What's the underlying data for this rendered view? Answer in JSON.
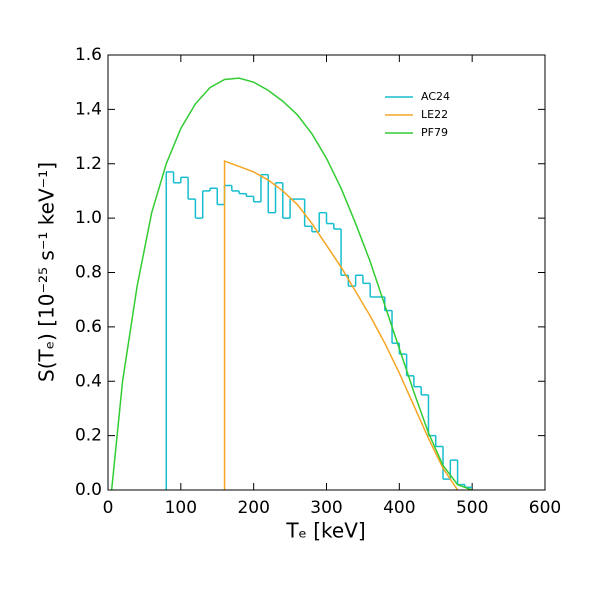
{
  "chart_data": {
    "type": "line",
    "xlabel": "Tₑ [keV]",
    "ylabel": "S(Tₑ) [10⁻²⁵ s⁻¹ keV⁻¹]",
    "xlim": [
      0,
      600
    ],
    "xticks": [
      0,
      100,
      200,
      300,
      400,
      500,
      600
    ],
    "ylim": [
      0,
      1.6
    ],
    "yticks": [
      {
        "value": 0,
        "label": "0.0"
      },
      0.2,
      0.4,
      0.6,
      0.8,
      {
        "value": 1,
        "label": "1.0"
      },
      1.2,
      1.4,
      1.6
    ],
    "legend": "upper right",
    "series": [
      {
        "name": "AC24",
        "color": "#17becf",
        "style": "step",
        "bins": [
          80,
          90,
          100,
          110,
          120,
          130,
          140,
          150,
          160,
          170,
          180,
          190,
          200,
          210,
          220,
          230,
          240,
          250,
          260,
          270,
          280,
          290,
          300,
          310,
          320,
          330,
          340,
          350,
          360,
          370,
          380,
          390,
          400,
          410,
          420,
          430,
          440,
          450,
          460,
          470,
          480,
          490,
          500
        ],
        "values": [
          1.17,
          1.13,
          1.15,
          1.07,
          1.0,
          1.1,
          1.11,
          1.05,
          1.12,
          1.1,
          1.09,
          1.08,
          1.06,
          1.16,
          1.02,
          1.13,
          1.0,
          1.07,
          1.07,
          0.97,
          0.95,
          1.02,
          0.98,
          0.96,
          0.79,
          0.75,
          0.79,
          0.76,
          0.71,
          0.71,
          0.66,
          0.54,
          0.5,
          0.42,
          0.38,
          0.35,
          0.2,
          0.16,
          0.04,
          0.11,
          0.02,
          0.01
        ]
      },
      {
        "name": "LE22",
        "color": "#f5a623",
        "x": [
          160,
          160,
          180,
          200,
          220,
          240,
          260,
          280,
          300,
          320,
          340,
          360,
          380,
          400,
          420,
          440,
          460,
          480
        ],
        "values": [
          0,
          1.21,
          1.19,
          1.17,
          1.14,
          1.1,
          1.05,
          0.98,
          0.9,
          0.82,
          0.73,
          0.64,
          0.54,
          0.43,
          0.31,
          0.19,
          0.08,
          0
        ]
      },
      {
        "name": "PF79",
        "color": "#33cc33",
        "x": [
          5,
          20,
          40,
          60,
          80,
          100,
          120,
          140,
          160,
          180,
          200,
          220,
          240,
          260,
          280,
          300,
          320,
          340,
          360,
          380,
          400,
          420,
          440,
          460,
          480,
          500
        ],
        "values": [
          0,
          0.4,
          0.75,
          1.02,
          1.2,
          1.33,
          1.42,
          1.48,
          1.51,
          1.515,
          1.5,
          1.47,
          1.43,
          1.38,
          1.31,
          1.22,
          1.11,
          0.98,
          0.84,
          0.68,
          0.52,
          0.36,
          0.21,
          0.09,
          0.02,
          0
        ]
      }
    ]
  }
}
